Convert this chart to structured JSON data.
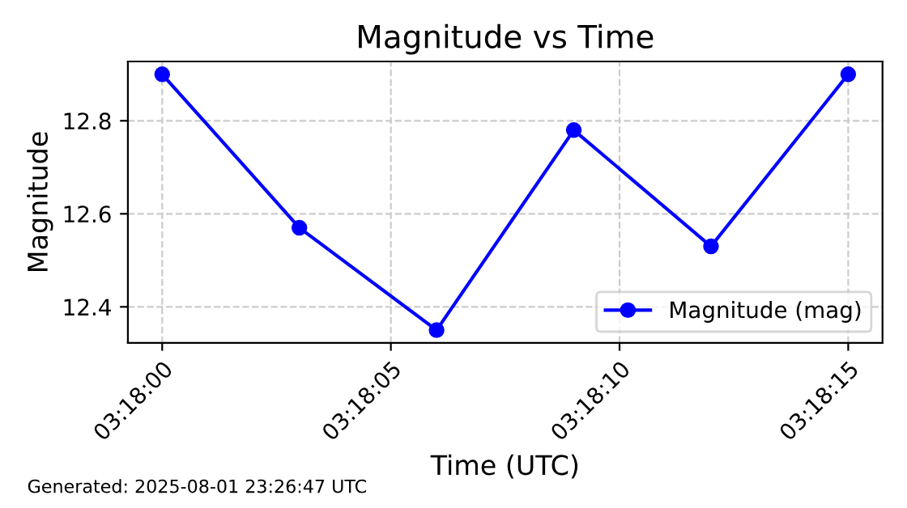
{
  "chart_data": {
    "type": "line",
    "title": "Magnitude vs Time",
    "xlabel": "Time (UTC)",
    "ylabel": "Magnitude",
    "x": [
      3.3,
      3.3008333,
      3.3016667,
      3.3025,
      3.3033333,
      3.3041667
    ],
    "series": [
      {
        "name": "Magnitude (mag)",
        "color": "#0000ff",
        "values": [
          12.9,
          12.57,
          12.35,
          12.78,
          12.53,
          12.9
        ]
      }
    ],
    "xlim": [
      3.2997917,
      3.304375
    ],
    "xticks": [
      {
        "value": 3.3,
        "label": "03:18:00"
      },
      {
        "value": 3.3013889,
        "label": "03:18:05"
      },
      {
        "value": 3.3027778,
        "label": "03:18:10"
      },
      {
        "value": 3.3041667,
        "label": "03:18:15"
      }
    ],
    "ylim": [
      12.3225,
      12.9275
    ],
    "yticks": [
      12.4,
      12.6,
      12.8
    ],
    "grid": true,
    "legend": "bottom right",
    "marker": "circle",
    "line_style": "solid",
    "annotations": [
      "Generated: 2025-08-01 23:26:47 UTC"
    ]
  }
}
